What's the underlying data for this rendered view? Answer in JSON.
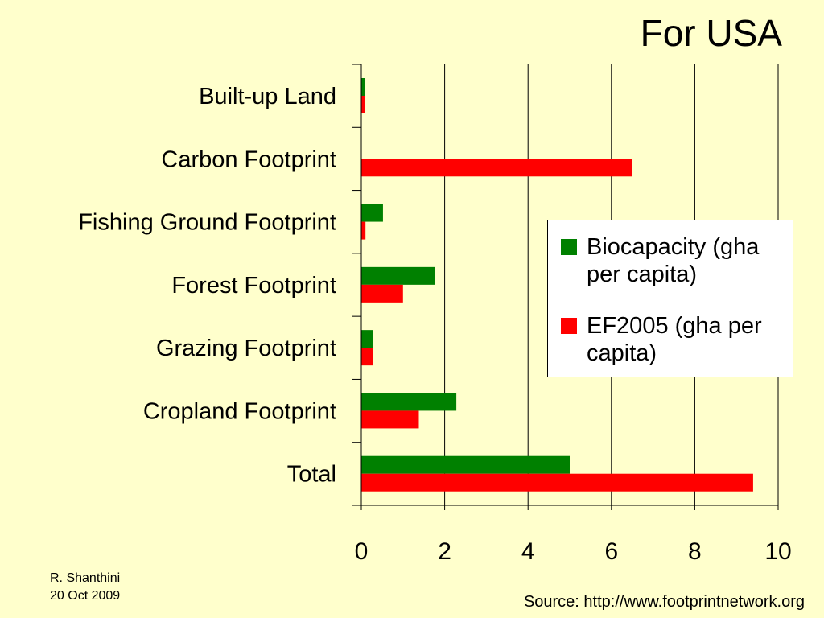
{
  "slide": {
    "title": "For USA",
    "author": "R. Shanthini",
    "date": "20 Oct 2009",
    "source": "Source: http://www.footprintnetwork.org",
    "background_color": "#FFFFCC"
  },
  "chart_data": {
    "type": "bar",
    "orientation": "horizontal",
    "title": "For USA",
    "categories": [
      "Built-up Land",
      "Carbon Footprint",
      "Fishing Ground Footprint",
      "Forest Footprint",
      "Grazing Footprint",
      "Cropland Footprint",
      "Total"
    ],
    "series": [
      {
        "name": "Biocapacity (gha per capita)",
        "color": "#008000",
        "values": [
          0.08,
          0,
          0.52,
          1.77,
          0.28,
          2.28,
          5.0
        ]
      },
      {
        "name": "EF2005 (gha per capita)",
        "color": "#FF0000",
        "values": [
          0.09,
          6.5,
          0.1,
          1.0,
          0.28,
          1.38,
          9.4
        ]
      }
    ],
    "xlim": [
      0,
      10
    ],
    "x_ticks": [
      0,
      2,
      4,
      6,
      8,
      10
    ],
    "xlabel": "",
    "ylabel": "",
    "grid": "vertical",
    "legend_position": "right"
  }
}
